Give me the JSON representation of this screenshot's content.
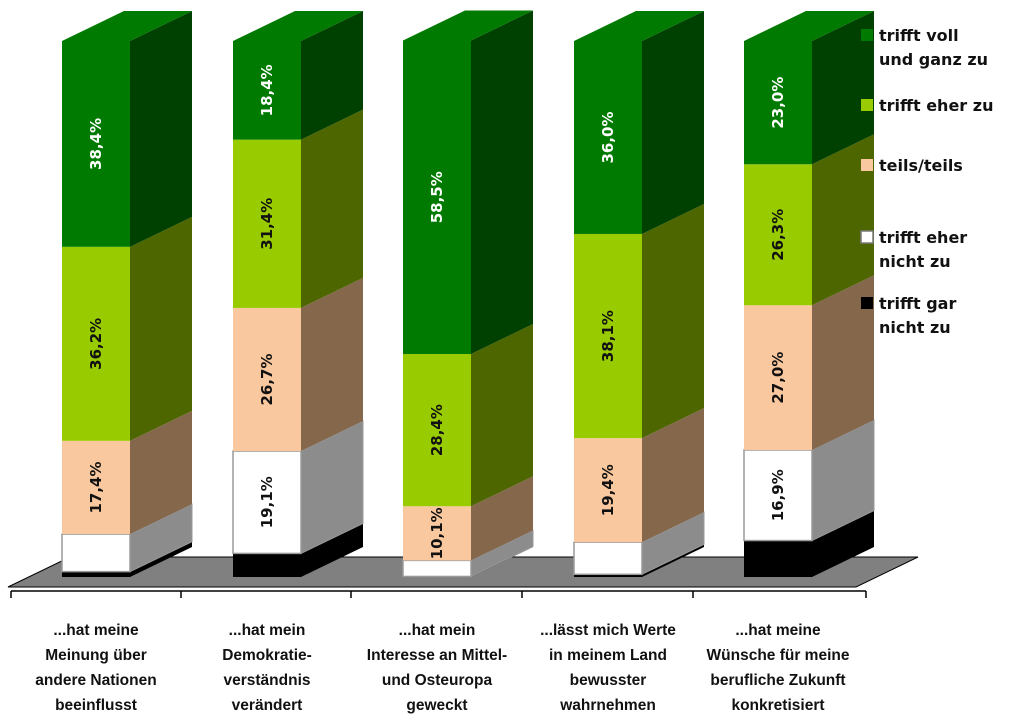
{
  "chart_data": {
    "type": "bar",
    "stacked": true,
    "orientation": "vertical",
    "three_d": true,
    "ylim": [
      0,
      100
    ],
    "grid": false,
    "legend_position": "right",
    "categories": [
      [
        "...hat meine",
        "Meinung über",
        "andere Nationen",
        "beeinflusst"
      ],
      [
        "...hat mein",
        "Demokratie-",
        "verständnis",
        "verändert"
      ],
      [
        "...hat mein",
        "Interesse an Mittel-",
        "und Osteuropa",
        "geweckt"
      ],
      [
        "...lässt mich Werte",
        "in meinem Land",
        "bewusster",
        "wahrnehmen"
      ],
      [
        "...hat meine",
        "Wünsche für meine",
        "berufliche Zukunft",
        "konkretisiert"
      ]
    ],
    "series": [
      {
        "name": [
          "trifft gar",
          "nicht zu"
        ],
        "color": "#000000",
        "side": "#000000",
        "values": [
          1.0,
          4.4,
          0.1,
          0.5,
          6.8
        ],
        "labels": [
          "",
          "",
          "",
          "",
          ""
        ],
        "label_dark": false
      },
      {
        "name": [
          "trifft eher",
          "nicht zu"
        ],
        "color": "#ffffff",
        "side": "#8c8c8c",
        "stroke": "#9a9a9a",
        "values": [
          7.0,
          19.1,
          3.0,
          6.0,
          16.9
        ],
        "labels": [
          "",
          "19,1%",
          "",
          "",
          "16,9%"
        ],
        "label_dark": true
      },
      {
        "name": [
          "teils/teils"
        ],
        "color": "#fac89e",
        "side": "#85684c",
        "values": [
          17.4,
          26.7,
          10.1,
          19.4,
          27.0
        ],
        "labels": [
          "17,4%",
          "26,7%",
          "10,1%",
          "19,4%",
          "27,0%"
        ],
        "label_dark": true
      },
      {
        "name": [
          "trifft eher zu"
        ],
        "color": "#99cc00",
        "side": "#4d6600",
        "values": [
          36.2,
          31.4,
          28.4,
          38.1,
          26.3
        ],
        "labels": [
          "36,2%",
          "31,4%",
          "28,4%",
          "38,1%",
          "26,3%"
        ],
        "label_dark": true
      },
      {
        "name": [
          "trifft voll",
          "und ganz zu"
        ],
        "color": "#007a00",
        "side": "#004000",
        "values": [
          38.4,
          18.4,
          58.5,
          36.0,
          23.0
        ],
        "labels": [
          "38,4%",
          "18,4%",
          "58,5%",
          "36,0%",
          "23,0%"
        ],
        "label_dark": false
      }
    ]
  },
  "colors": {
    "floor": "#808080",
    "axis": "#000000"
  }
}
